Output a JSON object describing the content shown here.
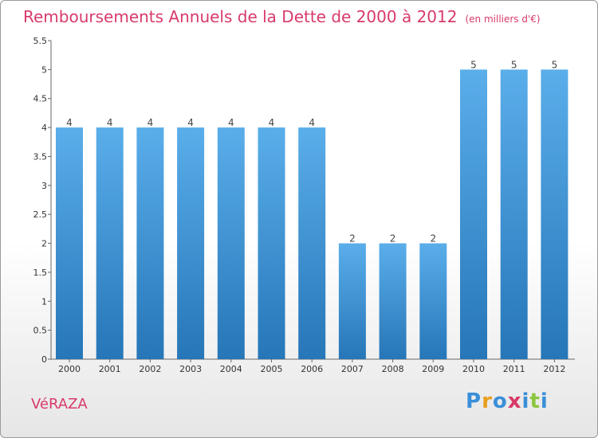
{
  "header": {
    "title": "Remboursements Annuels de la Dette de 2000 à 2012",
    "unit": "(en milliers d'€)"
  },
  "footer": {
    "commune": "VéRAZA",
    "logo": {
      "letters": [
        "P",
        "r",
        "o",
        "x",
        "i",
        "t",
        "i"
      ],
      "colors": [
        "#3a8fd8",
        "#e8a020",
        "#3a8fd8",
        "#d83a6a",
        "#3a8fd8",
        "#8cc63f",
        "#3a8fd8"
      ]
    }
  },
  "colors": {
    "bar_light": "#5aaeea",
    "bar_dark": "#2676b8",
    "title": "#d83a6a"
  },
  "chart_data": {
    "type": "bar",
    "categories": [
      "2000",
      "2001",
      "2002",
      "2003",
      "2004",
      "2005",
      "2006",
      "2007",
      "2008",
      "2009",
      "2010",
      "2011",
      "2012"
    ],
    "values": [
      4,
      4,
      4,
      4,
      4,
      4,
      4,
      2,
      2,
      2,
      5,
      5,
      5
    ],
    "data_labels": [
      "4",
      "4",
      "4",
      "4",
      "4",
      "4",
      "4",
      "2",
      "2",
      "2",
      "5",
      "5",
      "5"
    ],
    "y_ticks": [
      0,
      0.5,
      1,
      1.5,
      2,
      2.5,
      3,
      3.5,
      4,
      4.5,
      5,
      5.5
    ],
    "y_tick_labels": [
      "0",
      "0.5",
      "1",
      "1.5",
      "2",
      "2.5",
      "3",
      "3.5",
      "4",
      "4.5",
      "5",
      "5.5"
    ],
    "ylim": [
      0,
      5.5
    ],
    "grid": false,
    "legend": "none"
  }
}
